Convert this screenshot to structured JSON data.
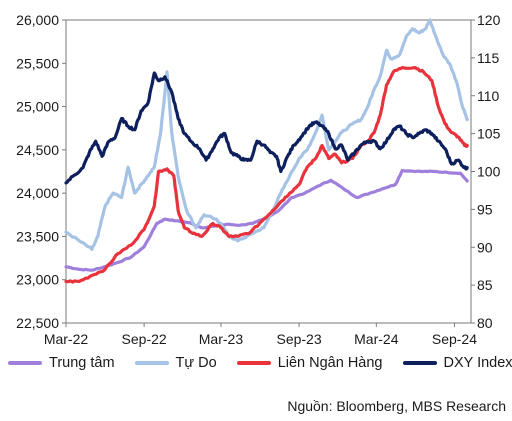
{
  "chart_data": {
    "type": "line",
    "x_labels": [
      "Mar-22",
      "Sep-22",
      "Mar-23",
      "Sep-23",
      "Mar-24",
      "Sep-24"
    ],
    "y_left_ticks": [
      "26,000",
      "25,500",
      "25,000",
      "24,500",
      "24,000",
      "23,500",
      "23,000",
      "22,500"
    ],
    "y_right_ticks": [
      "120",
      "115",
      "110",
      "105",
      "100",
      "95",
      "90",
      "85",
      "80"
    ],
    "y_left_range": [
      22500,
      26000
    ],
    "y_right_range": [
      80,
      120
    ],
    "x_start": "2022-03",
    "x_end": "2024-10",
    "grid": false,
    "legend_position": "bottom",
    "series": [
      {
        "name": "Trung tâm",
        "axis": "left",
        "color": "#9f7fdc",
        "points": [
          [
            "2022-03-01",
            23150
          ],
          [
            "2022-04-01",
            23120
          ],
          [
            "2022-05-01",
            23110
          ],
          [
            "2022-06-01",
            23150
          ],
          [
            "2022-07-01",
            23200
          ],
          [
            "2022-08-01",
            23260
          ],
          [
            "2022-09-01",
            23380
          ],
          [
            "2022-10-01",
            23650
          ],
          [
            "2022-10-20",
            23700
          ],
          [
            "2022-11-15",
            23680
          ],
          [
            "2022-12-15",
            23660
          ],
          [
            "2023-01-15",
            23600
          ],
          [
            "2023-02-15",
            23620
          ],
          [
            "2023-03-15",
            23640
          ],
          [
            "2023-04-15",
            23630
          ],
          [
            "2023-05-15",
            23650
          ],
          [
            "2023-06-15",
            23710
          ],
          [
            "2023-07-15",
            23800
          ],
          [
            "2023-08-15",
            23950
          ],
          [
            "2023-09-15",
            24000
          ],
          [
            "2023-10-15",
            24080
          ],
          [
            "2023-11-15",
            24150
          ],
          [
            "2023-12-15",
            24050
          ],
          [
            "2024-01-15",
            23950
          ],
          [
            "2024-02-15",
            24000
          ],
          [
            "2024-03-15",
            24050
          ],
          [
            "2024-04-15",
            24100
          ],
          [
            "2024-05-01",
            24260
          ],
          [
            "2024-06-15",
            24250
          ],
          [
            "2024-07-15",
            24250
          ],
          [
            "2024-08-15",
            24240
          ],
          [
            "2024-09-15",
            24230
          ],
          [
            "2024-10-01",
            24140
          ]
        ]
      },
      {
        "name": "Tự Do",
        "axis": "left",
        "color": "#a6c3e6",
        "points": [
          [
            "2022-03-01",
            23550
          ],
          [
            "2022-04-01",
            23450
          ],
          [
            "2022-05-01",
            23350
          ],
          [
            "2022-05-15",
            23500
          ],
          [
            "2022-06-01",
            23850
          ],
          [
            "2022-06-20",
            24000
          ],
          [
            "2022-07-10",
            23950
          ],
          [
            "2022-07-25",
            24300
          ],
          [
            "2022-08-10",
            24000
          ],
          [
            "2022-08-25",
            24100
          ],
          [
            "2022-09-10",
            24200
          ],
          [
            "2022-09-25",
            24300
          ],
          [
            "2022-10-10",
            24700
          ],
          [
            "2022-10-25",
            25400
          ],
          [
            "2022-11-05",
            24700
          ],
          [
            "2022-11-20",
            24200
          ],
          [
            "2022-12-10",
            23800
          ],
          [
            "2023-01-01",
            23600
          ],
          [
            "2023-01-20",
            23750
          ],
          [
            "2023-02-15",
            23700
          ],
          [
            "2023-03-01",
            23650
          ],
          [
            "2023-03-20",
            23500
          ],
          [
            "2023-04-10",
            23450
          ],
          [
            "2023-05-01",
            23500
          ],
          [
            "2023-05-20",
            23550
          ],
          [
            "2023-06-10",
            23600
          ],
          [
            "2023-07-01",
            23800
          ],
          [
            "2023-07-20",
            24000
          ],
          [
            "2023-08-10",
            24200
          ],
          [
            "2023-09-01",
            24400
          ],
          [
            "2023-09-20",
            24500
          ],
          [
            "2023-10-10",
            24700
          ],
          [
            "2023-10-25",
            24900
          ],
          [
            "2023-11-10",
            24500
          ],
          [
            "2023-11-25",
            24600
          ],
          [
            "2023-12-10",
            24700
          ],
          [
            "2024-01-05",
            24800
          ],
          [
            "2024-01-25",
            24850
          ],
          [
            "2024-02-10",
            25000
          ],
          [
            "2024-02-25",
            25200
          ],
          [
            "2024-03-10",
            25350
          ],
          [
            "2024-03-25",
            25650
          ],
          [
            "2024-04-05",
            25550
          ],
          [
            "2024-04-25",
            25600
          ],
          [
            "2024-05-10",
            25800
          ],
          [
            "2024-05-25",
            25900
          ],
          [
            "2024-06-10",
            25850
          ],
          [
            "2024-06-25",
            25900
          ],
          [
            "2024-07-05",
            26000
          ],
          [
            "2024-07-20",
            25800
          ],
          [
            "2024-08-05",
            25600
          ],
          [
            "2024-08-20",
            25500
          ],
          [
            "2024-09-05",
            25300
          ],
          [
            "2024-09-20",
            25000
          ],
          [
            "2024-10-01",
            24850
          ]
        ]
      },
      {
        "name": "Liên Ngân Hàng",
        "axis": "left",
        "color": "#e8323c",
        "points": [
          [
            "2022-03-01",
            22980
          ],
          [
            "2022-04-01",
            22980
          ],
          [
            "2022-05-01",
            23050
          ],
          [
            "2022-06-01",
            23120
          ],
          [
            "2022-07-01",
            23300
          ],
          [
            "2022-08-01",
            23400
          ],
          [
            "2022-09-01",
            23580
          ],
          [
            "2022-09-25",
            23850
          ],
          [
            "2022-10-05",
            24250
          ],
          [
            "2022-10-25",
            24280
          ],
          [
            "2022-11-10",
            24200
          ],
          [
            "2022-11-20",
            23800
          ],
          [
            "2022-12-05",
            23600
          ],
          [
            "2022-12-20",
            23550
          ],
          [
            "2023-01-15",
            23500
          ],
          [
            "2023-02-10",
            23650
          ],
          [
            "2023-03-01",
            23600
          ],
          [
            "2023-03-20",
            23500
          ],
          [
            "2023-04-10",
            23500
          ],
          [
            "2023-05-10",
            23550
          ],
          [
            "2023-06-10",
            23700
          ],
          [
            "2023-07-01",
            23800
          ],
          [
            "2023-07-20",
            23900
          ],
          [
            "2023-08-10",
            24000
          ],
          [
            "2023-09-01",
            24100
          ],
          [
            "2023-09-20",
            24300
          ],
          [
            "2023-10-10",
            24400
          ],
          [
            "2023-10-25",
            24550
          ],
          [
            "2023-11-10",
            24400
          ],
          [
            "2023-11-25",
            24450
          ],
          [
            "2023-12-10",
            24350
          ],
          [
            "2024-01-05",
            24400
          ],
          [
            "2024-01-25",
            24550
          ],
          [
            "2024-02-10",
            24600
          ],
          [
            "2024-02-25",
            24700
          ],
          [
            "2024-03-10",
            24900
          ],
          [
            "2024-03-25",
            25250
          ],
          [
            "2024-04-10",
            25400
          ],
          [
            "2024-05-01",
            25450
          ],
          [
            "2024-06-01",
            25450
          ],
          [
            "2024-06-20",
            25400
          ],
          [
            "2024-07-10",
            25300
          ],
          [
            "2024-07-25",
            25000
          ],
          [
            "2024-08-10",
            24800
          ],
          [
            "2024-08-25",
            24700
          ],
          [
            "2024-09-10",
            24650
          ],
          [
            "2024-09-25",
            24550
          ],
          [
            "2024-10-01",
            24550
          ]
        ]
      },
      {
        "name": "DXY Index",
        "axis": "right",
        "color": "#0d1f5c",
        "points": [
          [
            "2022-03-01",
            98.5
          ],
          [
            "2022-03-20",
            99.5
          ],
          [
            "2022-04-10",
            100.5
          ],
          [
            "2022-04-25",
            102.5
          ],
          [
            "2022-05-10",
            104
          ],
          [
            "2022-05-25",
            102
          ],
          [
            "2022-06-10",
            104
          ],
          [
            "2022-06-25",
            104.5
          ],
          [
            "2022-07-10",
            107
          ],
          [
            "2022-07-25",
            106
          ],
          [
            "2022-08-10",
            105.5
          ],
          [
            "2022-08-25",
            108
          ],
          [
            "2022-09-10",
            109
          ],
          [
            "2022-09-25",
            113
          ],
          [
            "2022-10-05",
            112
          ],
          [
            "2022-10-20",
            112.5
          ],
          [
            "2022-11-05",
            110.5
          ],
          [
            "2022-11-20",
            107
          ],
          [
            "2022-12-05",
            105
          ],
          [
            "2022-12-20",
            104
          ],
          [
            "2023-01-10",
            103
          ],
          [
            "2023-01-25",
            101.5
          ],
          [
            "2023-02-10",
            103
          ],
          [
            "2023-02-25",
            104.5
          ],
          [
            "2023-03-10",
            105
          ],
          [
            "2023-03-25",
            102.5
          ],
          [
            "2023-04-10",
            102
          ],
          [
            "2023-04-25",
            101.5
          ],
          [
            "2023-05-10",
            101.5
          ],
          [
            "2023-05-25",
            104
          ],
          [
            "2023-06-10",
            103.5
          ],
          [
            "2023-06-25",
            102.5
          ],
          [
            "2023-07-10",
            102
          ],
          [
            "2023-07-20",
            100
          ],
          [
            "2023-08-05",
            102
          ],
          [
            "2023-08-20",
            103.5
          ],
          [
            "2023-09-05",
            104.5
          ],
          [
            "2023-09-25",
            106
          ],
          [
            "2023-10-10",
            106.5
          ],
          [
            "2023-10-25",
            106
          ],
          [
            "2023-11-10",
            105
          ],
          [
            "2023-11-25",
            103
          ],
          [
            "2023-12-10",
            103.5
          ],
          [
            "2023-12-25",
            101.5
          ],
          [
            "2024-01-10",
            102.5
          ],
          [
            "2024-01-25",
            103.5
          ],
          [
            "2024-02-10",
            104
          ],
          [
            "2024-02-25",
            104
          ],
          [
            "2024-03-10",
            103
          ],
          [
            "2024-03-25",
            104
          ],
          [
            "2024-04-10",
            105.5
          ],
          [
            "2024-04-25",
            106
          ],
          [
            "2024-05-10",
            105
          ],
          [
            "2024-05-25",
            104.5
          ],
          [
            "2024-06-10",
            105
          ],
          [
            "2024-06-25",
            105.5
          ],
          [
            "2024-07-10",
            105
          ],
          [
            "2024-07-25",
            104
          ],
          [
            "2024-08-10",
            103
          ],
          [
            "2024-08-25",
            101
          ],
          [
            "2024-09-10",
            101.5
          ],
          [
            "2024-09-25",
            100.5
          ],
          [
            "2024-10-01",
            100.5
          ]
        ]
      }
    ]
  },
  "source": "Nguồn: Bloomberg, MBS Research"
}
